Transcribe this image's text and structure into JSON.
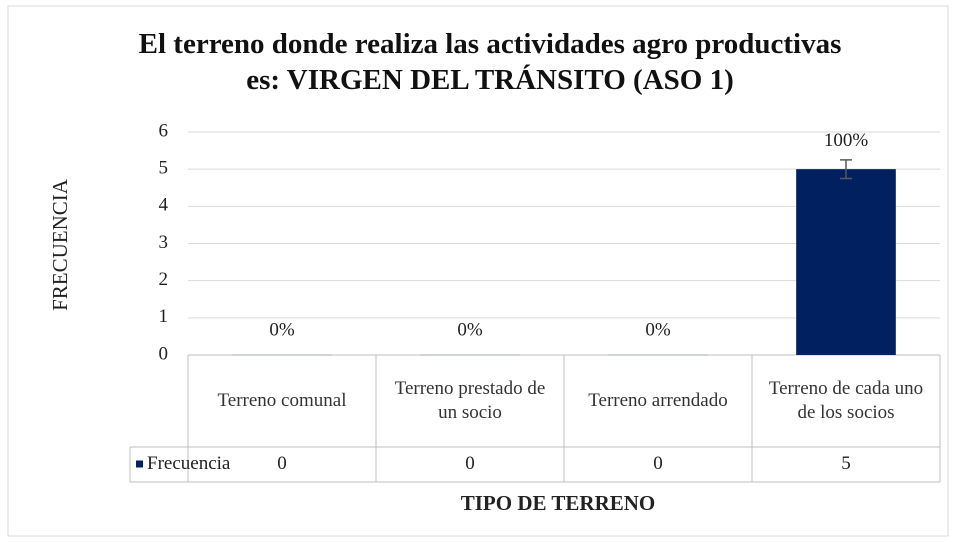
{
  "chart_data": {
    "type": "bar",
    "title": "El terreno donde realiza las actividades agro productivas es:  VIRGEN DEL TRÁNSITO (ASO 1)",
    "xlabel": "TIPO DE TERRENO",
    "ylabel": "FRECUENCIA",
    "categories": [
      "Terreno comunal",
      "Terreno prestado de un socio",
      "Terreno arrendado",
      "Terreno de cada uno de los socios"
    ],
    "series": [
      {
        "name": "Frecuencia",
        "color": "#002060",
        "values": [
          0,
          0,
          0,
          5
        ],
        "value_labels": [
          "0%",
          "0%",
          "0%",
          "100%"
        ],
        "errors": [
          0,
          0,
          0,
          0.25
        ]
      }
    ],
    "ylim": [
      0,
      6
    ],
    "yticks": [
      0,
      1,
      2,
      3,
      4,
      5,
      6
    ],
    "grid": true,
    "data_table": true
  }
}
